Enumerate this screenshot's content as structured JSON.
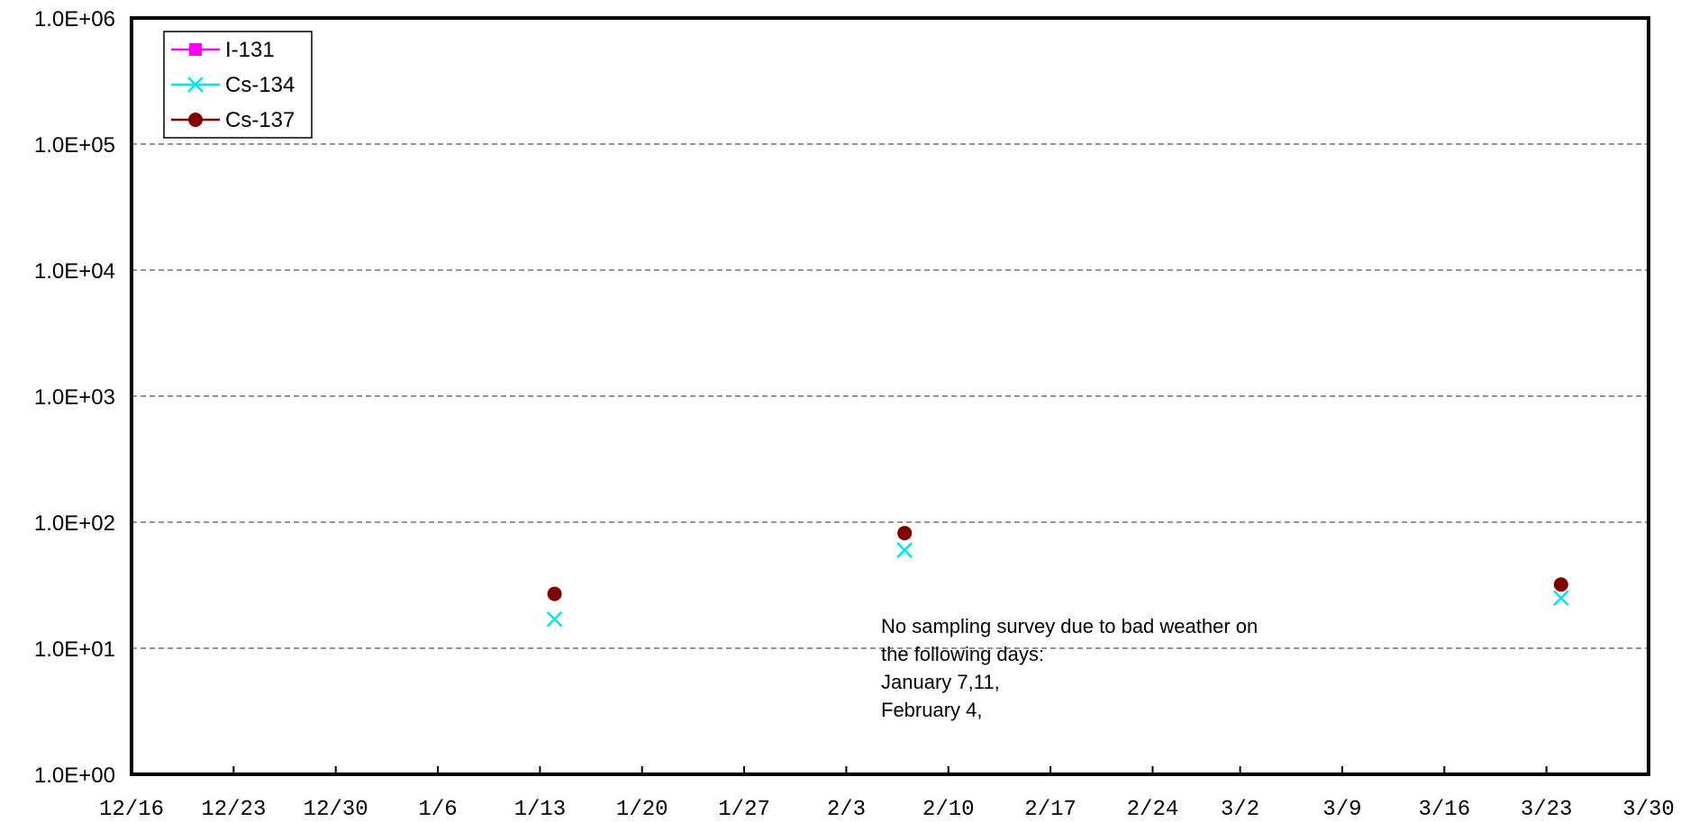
{
  "chart_data": {
    "type": "scatter",
    "title": "",
    "xlabel": "",
    "ylabel": "",
    "x_axis": {
      "kind": "date",
      "range": [
        "12/16",
        "3/30"
      ],
      "tick_labels": [
        "12/16",
        "12/23",
        "12/30",
        "1/6",
        "1/13",
        "1/20",
        "1/27",
        "2/3",
        "2/10",
        "2/17",
        "2/24",
        "3/2",
        "3/9",
        "3/16",
        "3/23",
        "3/30"
      ]
    },
    "y_axis": {
      "scale": "log",
      "ylim": [
        1,
        1000000
      ],
      "tick_values": [
        1,
        10,
        100,
        1000,
        10000,
        100000,
        1000000
      ],
      "tick_labels": [
        "1.0E+00",
        "1.0E+01",
        "1.0E+02",
        "1.0E+03",
        "1.0E+04",
        "1.0E+05",
        "1.0E+06"
      ]
    },
    "grid": "horizontal dashed",
    "legend_placement": "top-left",
    "series": [
      {
        "name": "I-131",
        "color": "#ff00ff",
        "marker": "square",
        "points": []
      },
      {
        "name": "Cs-134",
        "color": "#00e5ee",
        "marker": "x",
        "points": [
          {
            "x": "1/14",
            "y": 17
          },
          {
            "x": "2/7",
            "y": 60
          },
          {
            "x": "3/24",
            "y": 25
          }
        ]
      },
      {
        "name": "Cs-137",
        "color": "#800000",
        "marker": "circle",
        "points": [
          {
            "x": "1/14",
            "y": 27
          },
          {
            "x": "2/7",
            "y": 82
          },
          {
            "x": "3/24",
            "y": 32
          }
        ]
      }
    ],
    "annotation": {
      "lines": [
        "No sampling survey due to bad weather on",
        "the following days:",
        "January 7,11,",
        "February 4,"
      ]
    }
  }
}
